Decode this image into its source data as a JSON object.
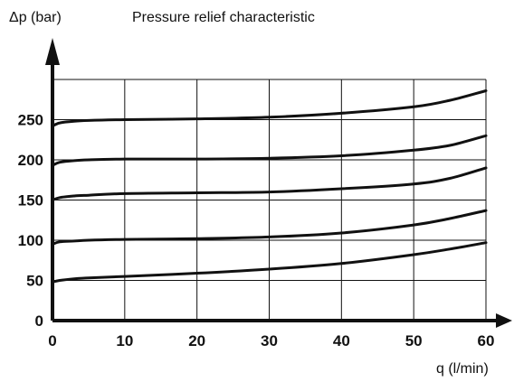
{
  "chart_data": {
    "type": "line",
    "title": "Pressure relief characteristic",
    "xlabel": "q (l/min)",
    "ylabel": "Δp (bar)",
    "xlim": [
      0,
      60
    ],
    "ylim": [
      0,
      300
    ],
    "xticks": [
      0,
      10,
      20,
      30,
      40,
      50,
      60
    ],
    "yticks": [
      0,
      50,
      100,
      150,
      200,
      250
    ],
    "grid": true,
    "legend": "none",
    "series": [
      {
        "x": [
          0,
          1,
          3,
          5,
          10,
          20,
          30,
          40,
          50,
          55,
          60
        ],
        "y": [
          48,
          50,
          52,
          53,
          55,
          59,
          64,
          71,
          82,
          89,
          97
        ]
      },
      {
        "x": [
          0,
          1,
          3,
          5,
          10,
          20,
          30,
          40,
          50,
          55,
          60
        ],
        "y": [
          95,
          98,
          99,
          100,
          101,
          102,
          104,
          109,
          119,
          127,
          137
        ]
      },
      {
        "x": [
          0,
          1,
          3,
          5,
          10,
          20,
          30,
          40,
          50,
          55,
          60
        ],
        "y": [
          150,
          153,
          155,
          156,
          158,
          159,
          160,
          164,
          170,
          177,
          190
        ]
      },
      {
        "x": [
          0,
          1,
          3,
          5,
          10,
          20,
          30,
          40,
          50,
          55,
          60
        ],
        "y": [
          193,
          197,
          199,
          200,
          201,
          201,
          202,
          205,
          212,
          218,
          230
        ]
      },
      {
        "x": [
          0,
          1,
          3,
          5,
          10,
          20,
          30,
          40,
          50,
          55,
          60
        ],
        "y": [
          242,
          246,
          248,
          249,
          250,
          251,
          253,
          258,
          266,
          274,
          286
        ]
      }
    ]
  }
}
